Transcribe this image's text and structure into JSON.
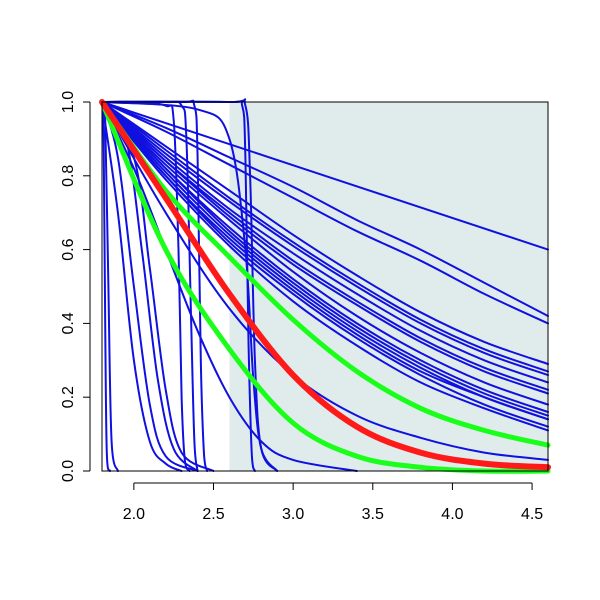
{
  "chart_data": {
    "type": "line",
    "title": "",
    "xlabel": "",
    "ylabel": "",
    "xlim": [
      1.8,
      4.6
    ],
    "ylim": [
      0.0,
      1.0
    ],
    "x_ticks": [
      2.0,
      2.5,
      3.0,
      3.5,
      4.0,
      4.5
    ],
    "x_tick_labels": [
      "2.0",
      "2.5",
      "3.0",
      "3.5",
      "4.0",
      "4.5"
    ],
    "y_ticks": [
      0.0,
      0.2,
      0.4,
      0.6,
      0.8,
      1.0
    ],
    "y_tick_labels": [
      "0.0",
      "0.2",
      "0.4",
      "0.6",
      "0.8",
      "1.0"
    ],
    "grid": false,
    "legend": "none",
    "shaded_region": {
      "x_start": 2.6,
      "x_end": 4.6,
      "color": "#e0ecec"
    },
    "colors": {
      "draws": "#1010e0",
      "estimate": "#ff1a1a",
      "band": "#1aff1a"
    },
    "series": [
      {
        "kind": "band",
        "x": [
          1.8,
          2.2,
          2.6,
          3.0,
          3.4,
          3.8,
          4.2,
          4.6
        ],
        "y": [
          1.0,
          0.76,
          0.58,
          0.41,
          0.27,
          0.17,
          0.11,
          0.07
        ]
      },
      {
        "kind": "band",
        "x": [
          1.8,
          2.2,
          2.6,
          3.0,
          3.4,
          3.8,
          4.2,
          4.6
        ],
        "y": [
          1.0,
          0.6,
          0.33,
          0.13,
          0.04,
          0.01,
          0.0,
          0.0
        ]
      },
      {
        "kind": "estimate",
        "x": [
          1.8,
          2.2,
          2.6,
          3.0,
          3.4,
          3.8,
          4.2,
          4.6
        ],
        "y": [
          1.0,
          0.74,
          0.48,
          0.26,
          0.12,
          0.05,
          0.02,
          0.01
        ]
      },
      {
        "kind": "draw",
        "x": [
          1.8,
          4.6
        ],
        "y": [
          1.0,
          0.6
        ]
      },
      {
        "kind": "draw",
        "x": [
          1.8,
          2.2,
          2.6,
          3.0,
          3.4,
          3.8,
          4.2,
          4.6
        ],
        "y": [
          1.0,
          0.93,
          0.85,
          0.77,
          0.68,
          0.6,
          0.51,
          0.42
        ]
      },
      {
        "kind": "draw",
        "x": [
          1.8,
          2.2,
          2.6,
          3.0,
          3.4,
          3.8,
          4.2,
          4.6
        ],
        "y": [
          1.0,
          0.92,
          0.83,
          0.74,
          0.65,
          0.57,
          0.48,
          0.4
        ]
      },
      {
        "kind": "draw",
        "x": [
          1.8,
          2.2,
          2.6,
          3.0,
          3.4,
          3.8,
          4.2,
          4.6
        ],
        "y": [
          1.0,
          0.88,
          0.76,
          0.64,
          0.53,
          0.43,
          0.35,
          0.29
        ]
      },
      {
        "kind": "draw",
        "x": [
          1.8,
          2.2,
          2.6,
          3.0,
          3.4,
          3.8,
          4.2,
          4.6
        ],
        "y": [
          1.0,
          0.86,
          0.73,
          0.61,
          0.5,
          0.4,
          0.32,
          0.26
        ]
      },
      {
        "kind": "draw",
        "x": [
          1.8,
          2.2,
          2.6,
          3.0,
          3.4,
          3.8,
          4.2,
          4.6
        ],
        "y": [
          1.0,
          0.85,
          0.71,
          0.59,
          0.48,
          0.38,
          0.3,
          0.24
        ]
      },
      {
        "kind": "draw",
        "x": [
          1.8,
          2.2,
          2.6,
          3.0,
          3.4,
          3.8,
          4.2,
          4.6
        ],
        "y": [
          1.0,
          0.84,
          0.69,
          0.56,
          0.45,
          0.35,
          0.27,
          0.21
        ]
      },
      {
        "kind": "draw",
        "x": [
          1.8,
          2.2,
          2.6,
          3.0,
          3.4,
          3.8,
          4.2,
          4.6
        ],
        "y": [
          1.0,
          0.83,
          0.68,
          0.54,
          0.42,
          0.32,
          0.24,
          0.18
        ]
      },
      {
        "kind": "draw",
        "x": [
          1.8,
          2.2,
          2.6,
          3.0,
          3.4,
          3.8,
          4.2,
          4.6
        ],
        "y": [
          1.0,
          0.82,
          0.66,
          0.52,
          0.4,
          0.3,
          0.22,
          0.16
        ]
      },
      {
        "kind": "draw",
        "x": [
          1.8,
          2.2,
          2.6,
          3.0,
          3.4,
          3.8,
          4.2,
          4.6
        ],
        "y": [
          1.0,
          0.81,
          0.64,
          0.5,
          0.38,
          0.28,
          0.2,
          0.14
        ]
      },
      {
        "kind": "draw",
        "x": [
          1.8,
          2.2,
          2.6,
          3.0,
          3.4,
          3.8,
          4.2,
          4.6
        ],
        "y": [
          1.0,
          0.8,
          0.62,
          0.48,
          0.36,
          0.26,
          0.18,
          0.12
        ]
      },
      {
        "kind": "draw",
        "x": [
          1.8,
          2.2,
          2.6,
          3.0,
          3.4,
          3.8,
          4.2,
          4.6
        ],
        "y": [
          1.0,
          0.79,
          0.61,
          0.46,
          0.34,
          0.24,
          0.17,
          0.11
        ]
      },
      {
        "kind": "draw",
        "x": [
          1.8,
          2.2,
          2.6,
          3.0,
          3.4,
          3.8,
          4.2,
          4.6
        ],
        "y": [
          1.0,
          0.82,
          0.65,
          0.51,
          0.39,
          0.29,
          0.21,
          0.15
        ]
      },
      {
        "kind": "draw",
        "x": [
          1.8,
          2.2,
          2.6,
          3.0,
          3.4,
          3.8,
          4.2,
          4.6
        ],
        "y": [
          1.0,
          0.84,
          0.7,
          0.57,
          0.46,
          0.36,
          0.28,
          0.22
        ]
      },
      {
        "kind": "draw",
        "x": [
          1.8,
          2.2,
          2.6,
          3.0,
          3.4,
          3.8,
          4.2,
          4.6
        ],
        "y": [
          1.0,
          0.87,
          0.74,
          0.62,
          0.51,
          0.41,
          0.33,
          0.27
        ]
      },
      {
        "kind": "draw",
        "x": [
          1.8,
          2.2,
          2.6,
          3.0,
          3.4,
          3.8,
          4.2,
          4.6
        ],
        "y": [
          1.0,
          0.8,
          0.63,
          0.49,
          0.37,
          0.27,
          0.2,
          0.14
        ]
      },
      {
        "kind": "draw",
        "x": [
          1.8,
          2.2,
          2.6,
          3.0,
          3.4,
          3.8,
          4.2,
          4.6
        ],
        "y": [
          1.0,
          0.7,
          0.44,
          0.26,
          0.15,
          0.09,
          0.05,
          0.03
        ]
      },
      {
        "kind": "draw",
        "x": [
          1.8,
          2.0,
          2.2,
          2.4,
          2.6,
          2.8,
          3.0,
          3.4
        ],
        "y": [
          1.0,
          0.82,
          0.6,
          0.38,
          0.2,
          0.08,
          0.03,
          0.0
        ]
      },
      {
        "kind": "draw",
        "x": [
          1.8,
          1.9,
          2.0,
          2.1,
          2.2,
          2.3
        ],
        "y": [
          1.0,
          0.7,
          0.3,
          0.08,
          0.02,
          0.0
        ]
      },
      {
        "kind": "draw",
        "x": [
          1.8,
          1.9,
          2.0,
          2.1,
          2.2,
          2.4
        ],
        "y": [
          1.0,
          0.85,
          0.5,
          0.18,
          0.04,
          0.0
        ]
      },
      {
        "kind": "draw",
        "x": [
          1.8,
          1.95,
          2.05,
          2.15,
          2.25,
          2.4
        ],
        "y": [
          1.0,
          0.9,
          0.6,
          0.25,
          0.06,
          0.0
        ]
      },
      {
        "kind": "draw",
        "x": [
          1.8,
          2.0,
          2.1,
          2.2,
          2.3,
          2.5
        ],
        "y": [
          1.0,
          0.85,
          0.55,
          0.22,
          0.05,
          0.0
        ]
      },
      {
        "kind": "draw",
        "x": [
          1.8,
          1.81,
          1.82,
          1.83,
          1.85
        ],
        "y": [
          1.0,
          0.9,
          0.4,
          0.05,
          0.0
        ]
      },
      {
        "kind": "draw",
        "x": [
          1.8,
          1.82,
          1.84,
          1.86,
          1.9
        ],
        "y": [
          1.0,
          0.95,
          0.5,
          0.08,
          0.0
        ]
      },
      {
        "kind": "draw",
        "x": [
          1.8,
          2.0,
          2.2,
          2.25,
          2.28,
          2.3,
          2.32,
          2.35
        ],
        "y": [
          1.0,
          1.0,
          0.99,
          0.95,
          0.6,
          0.2,
          0.03,
          0.0
        ]
      },
      {
        "kind": "draw",
        "x": [
          1.8,
          2.2,
          2.3,
          2.33,
          2.36,
          2.38,
          2.4
        ],
        "y": [
          1.0,
          1.0,
          0.99,
          0.9,
          0.4,
          0.08,
          0.0
        ]
      },
      {
        "kind": "draw",
        "x": [
          1.8,
          2.3,
          2.38,
          2.4,
          2.42,
          2.44,
          2.46
        ],
        "y": [
          1.0,
          1.0,
          0.99,
          0.85,
          0.3,
          0.05,
          0.0
        ]
      },
      {
        "kind": "draw",
        "x": [
          1.8,
          2.6,
          2.68,
          2.7,
          2.72,
          2.74,
          2.76
        ],
        "y": [
          1.0,
          1.0,
          0.99,
          0.85,
          0.35,
          0.05,
          0.0
        ]
      },
      {
        "kind": "draw",
        "x": [
          1.8,
          2.6,
          2.7,
          2.73,
          2.76,
          2.8,
          2.9
        ],
        "y": [
          1.0,
          1.0,
          0.99,
          0.8,
          0.3,
          0.06,
          0.0
        ]
      },
      {
        "kind": "draw",
        "x": [
          1.8,
          2.4,
          2.6,
          2.7,
          2.75,
          2.8,
          2.9
        ],
        "y": [
          1.0,
          0.98,
          0.9,
          0.6,
          0.25,
          0.06,
          0.0
        ]
      }
    ]
  }
}
